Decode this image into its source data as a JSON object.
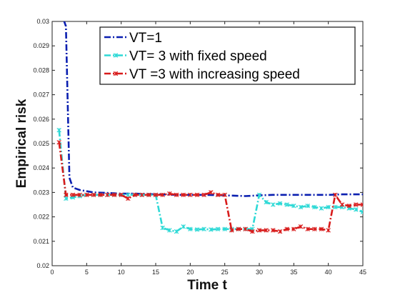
{
  "chart_data": {
    "type": "line",
    "xlabel": "Time t",
    "ylabel": "Empirical risk",
    "xlim": [
      0,
      45
    ],
    "ylim": [
      0.02,
      0.03
    ],
    "xticks": [
      0,
      5,
      10,
      15,
      20,
      25,
      30,
      35,
      40,
      45
    ],
    "yticks": [
      0.02,
      0.021,
      0.022,
      0.023,
      0.024,
      0.025,
      0.026,
      0.027,
      0.028,
      0.029,
      0.03
    ],
    "legend_position": "top-right",
    "series": [
      {
        "name": "VT=1",
        "color": "#0a1fb0",
        "dash": "dashdot",
        "marker": "none",
        "x": [
          1,
          1.5,
          2,
          2.5,
          3,
          4,
          5,
          6,
          8,
          10,
          12,
          15,
          18,
          20,
          22,
          25,
          28,
          30,
          32,
          35,
          38,
          40,
          42,
          45
        ],
        "y": [
          0.0305,
          0.0302,
          0.0298,
          0.0236,
          0.0232,
          0.0231,
          0.02305,
          0.023,
          0.02298,
          0.02295,
          0.02295,
          0.02292,
          0.0229,
          0.0229,
          0.0229,
          0.02288,
          0.02285,
          0.02288,
          0.0229,
          0.0229,
          0.0229,
          0.0229,
          0.02292,
          0.02292
        ]
      },
      {
        "name": "VT= 3 with fixed speed",
        "color": "#2ed9d6",
        "dash": "dashdot",
        "marker": "x",
        "x": [
          1,
          2,
          3,
          4,
          5,
          6,
          7,
          8,
          9,
          10,
          11,
          12,
          13,
          14,
          15,
          16,
          17,
          18,
          19,
          20,
          21,
          22,
          23,
          24,
          25,
          26,
          27,
          28,
          29,
          30,
          31,
          32,
          33,
          34,
          35,
          36,
          37,
          38,
          39,
          40,
          41,
          42,
          43,
          44,
          45
        ],
        "y": [
          0.02555,
          0.02275,
          0.0228,
          0.02285,
          0.0229,
          0.0229,
          0.0229,
          0.0229,
          0.0229,
          0.0229,
          0.0229,
          0.0229,
          0.0229,
          0.0229,
          0.0229,
          0.02155,
          0.02145,
          0.0214,
          0.0216,
          0.0215,
          0.02148,
          0.0215,
          0.02148,
          0.0215,
          0.0215,
          0.0215,
          0.0215,
          0.0215,
          0.0215,
          0.0229,
          0.0226,
          0.0225,
          0.02255,
          0.0225,
          0.02245,
          0.0224,
          0.02245,
          0.0224,
          0.02235,
          0.0224,
          0.0224,
          0.0224,
          0.02235,
          0.0223,
          0.0222
        ]
      },
      {
        "name": "VT =3 with increasing speed",
        "color": "#d81c1c",
        "dash": "dashdot",
        "marker": "x",
        "x": [
          1,
          2,
          3,
          4,
          5,
          6,
          7,
          8,
          9,
          10,
          11,
          12,
          13,
          14,
          15,
          16,
          17,
          18,
          19,
          20,
          21,
          22,
          23,
          24,
          25,
          26,
          27,
          28,
          29,
          30,
          31,
          32,
          33,
          34,
          35,
          36,
          37,
          38,
          39,
          40,
          41,
          42,
          43,
          44,
          45
        ],
        "y": [
          0.02505,
          0.0229,
          0.0229,
          0.0229,
          0.0229,
          0.0229,
          0.0229,
          0.0229,
          0.0229,
          0.0229,
          0.02275,
          0.0229,
          0.0229,
          0.0229,
          0.0229,
          0.0229,
          0.02295,
          0.0229,
          0.0229,
          0.0229,
          0.0229,
          0.0229,
          0.023,
          0.0229,
          0.0229,
          0.02145,
          0.0215,
          0.0215,
          0.0214,
          0.02145,
          0.02145,
          0.02145,
          0.0214,
          0.0215,
          0.0215,
          0.0216,
          0.0215,
          0.0215,
          0.0215,
          0.02145,
          0.0229,
          0.0225,
          0.02245,
          0.0225,
          0.0225
        ]
      }
    ]
  }
}
